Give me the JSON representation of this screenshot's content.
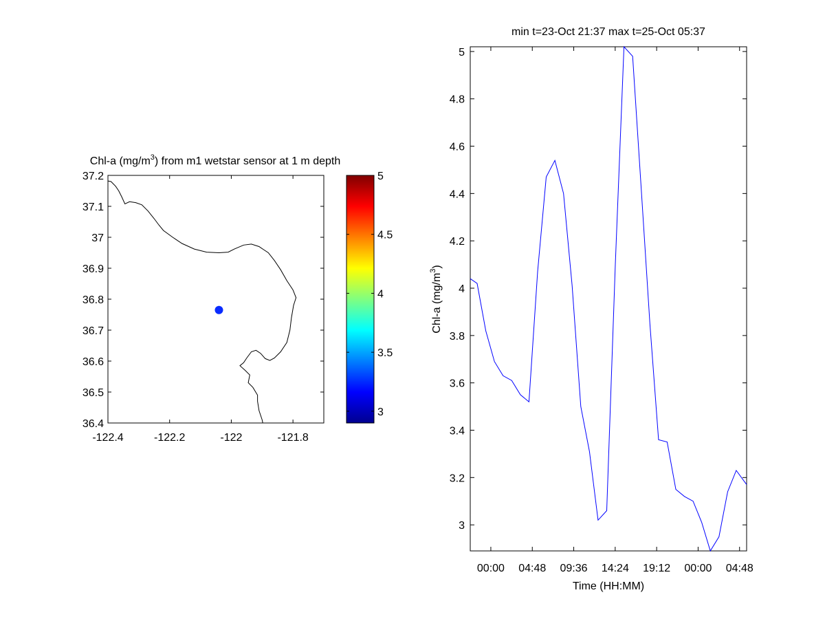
{
  "chart_data": [
    {
      "type": "scatter",
      "title_prefix": "Chl-a (mg/m",
      "title_exponent": "3",
      "title_suffix": ") from m1 wetstar sensor at 1 m depth",
      "xlabel": "",
      "ylabel": "",
      "xlim": [
        -122.4,
        -121.7
      ],
      "ylim": [
        36.4,
        37.2
      ],
      "xticks": [
        -122.4,
        -122.2,
        -122.0,
        -121.8
      ],
      "xtick_labels": [
        "-122.4",
        "-122.2",
        "-122",
        "-121.8"
      ],
      "yticks": [
        36.4,
        36.5,
        36.6,
        36.7,
        36.8,
        36.9,
        37.0,
        37.1,
        37.2
      ],
      "ytick_labels": [
        "36.4",
        "36.5",
        "36.6",
        "36.7",
        "36.8",
        "36.9",
        "37",
        "37.1",
        "37.2"
      ],
      "grid": false,
      "points": [
        {
          "x": -122.04,
          "y": 36.765,
          "value": 3.2
        }
      ],
      "point_color": "#0a2cff",
      "coastline": [
        [
          -122.4,
          37.182
        ],
        [
          -122.39,
          37.18
        ],
        [
          -122.375,
          37.165
        ],
        [
          -122.365,
          37.15
        ],
        [
          -122.355,
          37.13
        ],
        [
          -122.345,
          37.108
        ],
        [
          -122.33,
          37.115
        ],
        [
          -122.31,
          37.112
        ],
        [
          -122.29,
          37.105
        ],
        [
          -122.27,
          37.085
        ],
        [
          -122.25,
          37.06
        ],
        [
          -122.235,
          37.04
        ],
        [
          -122.22,
          37.022
        ],
        [
          -122.19,
          37.0
        ],
        [
          -122.16,
          36.98
        ],
        [
          -122.12,
          36.962
        ],
        [
          -122.08,
          36.952
        ],
        [
          -122.04,
          36.95
        ],
        [
          -122.01,
          36.952
        ],
        [
          -121.99,
          36.962
        ],
        [
          -121.96,
          36.975
        ],
        [
          -121.935,
          36.978
        ],
        [
          -121.91,
          36.97
        ],
        [
          -121.88,
          36.95
        ],
        [
          -121.86,
          36.925
        ],
        [
          -121.84,
          36.895
        ],
        [
          -121.82,
          36.86
        ],
        [
          -121.8,
          36.83
        ],
        [
          -121.79,
          36.805
        ],
        [
          -121.798,
          36.78
        ],
        [
          -121.805,
          36.74
        ],
        [
          -121.81,
          36.7
        ],
        [
          -121.82,
          36.66
        ],
        [
          -121.84,
          36.63
        ],
        [
          -121.86,
          36.61
        ],
        [
          -121.875,
          36.602
        ],
        [
          -121.89,
          36.608
        ],
        [
          -121.905,
          36.625
        ],
        [
          -121.92,
          36.635
        ],
        [
          -121.935,
          36.63
        ],
        [
          -121.95,
          36.61
        ],
        [
          -121.96,
          36.595
        ],
        [
          -121.972,
          36.585
        ],
        [
          -121.955,
          36.57
        ],
        [
          -121.94,
          36.555
        ],
        [
          -121.945,
          36.53
        ],
        [
          -121.93,
          36.515
        ],
        [
          -121.915,
          36.49
        ],
        [
          -121.915,
          36.47
        ],
        [
          -121.91,
          36.44
        ],
        [
          -121.9,
          36.41
        ],
        [
          -121.898,
          36.4
        ]
      ],
      "colorbar": {
        "min": 2.9,
        "max": 5.0,
        "ticks": [
          3,
          3.5,
          4,
          4.5,
          5
        ],
        "tick_labels": [
          "3",
          "3.5",
          "4",
          "4.5",
          "5"
        ],
        "colormap": "jet"
      }
    },
    {
      "type": "line",
      "title": "min t=23-Oct 21:37 max t=25-Oct 05:37",
      "xlabel": "Time (HH:MM)",
      "ylabel_prefix": "Chl-a (mg/m",
      "ylabel_exponent": "3",
      "ylabel_suffix": ")",
      "xlim_hours": [
        0,
        32
      ],
      "ylim": [
        2.89,
        5.02
      ],
      "xticks_hours": [
        2.383,
        7.183,
        11.983,
        16.783,
        21.583,
        26.383,
        31.183
      ],
      "xtick_labels": [
        "00:00",
        "04:48",
        "09:36",
        "14:24",
        "19:12",
        "00:00",
        "04:48"
      ],
      "yticks": [
        3.0,
        3.2,
        3.4,
        3.6,
        3.8,
        4.0,
        4.2,
        4.4,
        4.6,
        4.8,
        5.0
      ],
      "ytick_labels": [
        "3",
        "3.2",
        "3.4",
        "3.6",
        "3.8",
        "4",
        "4.2",
        "4.4",
        "4.6",
        "4.8",
        "5"
      ],
      "grid": false,
      "series": [
        {
          "color": "#0000ff",
          "x_hours": [
            0,
            0.8,
            1.8,
            2.8,
            3.8,
            4.8,
            5.8,
            6.8,
            7.8,
            8.8,
            9.8,
            10.8,
            11.8,
            12.8,
            13.8,
            14.8,
            15.8,
            16.8,
            17.8,
            18.8,
            19.8,
            20.8,
            21.8,
            22.8,
            23.8,
            24.8,
            25.8,
            26.8,
            27.8,
            28.8,
            29.8,
            30.8,
            31.8,
            32
          ],
          "values": [
            4.04,
            4.02,
            3.82,
            3.69,
            3.63,
            3.61,
            3.55,
            3.52,
            4.07,
            4.47,
            4.54,
            4.4,
            4.01,
            3.5,
            3.31,
            3.02,
            3.06,
            4.1,
            5.02,
            4.98,
            4.42,
            3.85,
            3.36,
            3.35,
            3.15,
            3.12,
            3.1,
            3.01,
            2.89,
            2.95,
            3.14,
            3.23,
            3.18,
            3.17
          ]
        }
      ]
    }
  ]
}
